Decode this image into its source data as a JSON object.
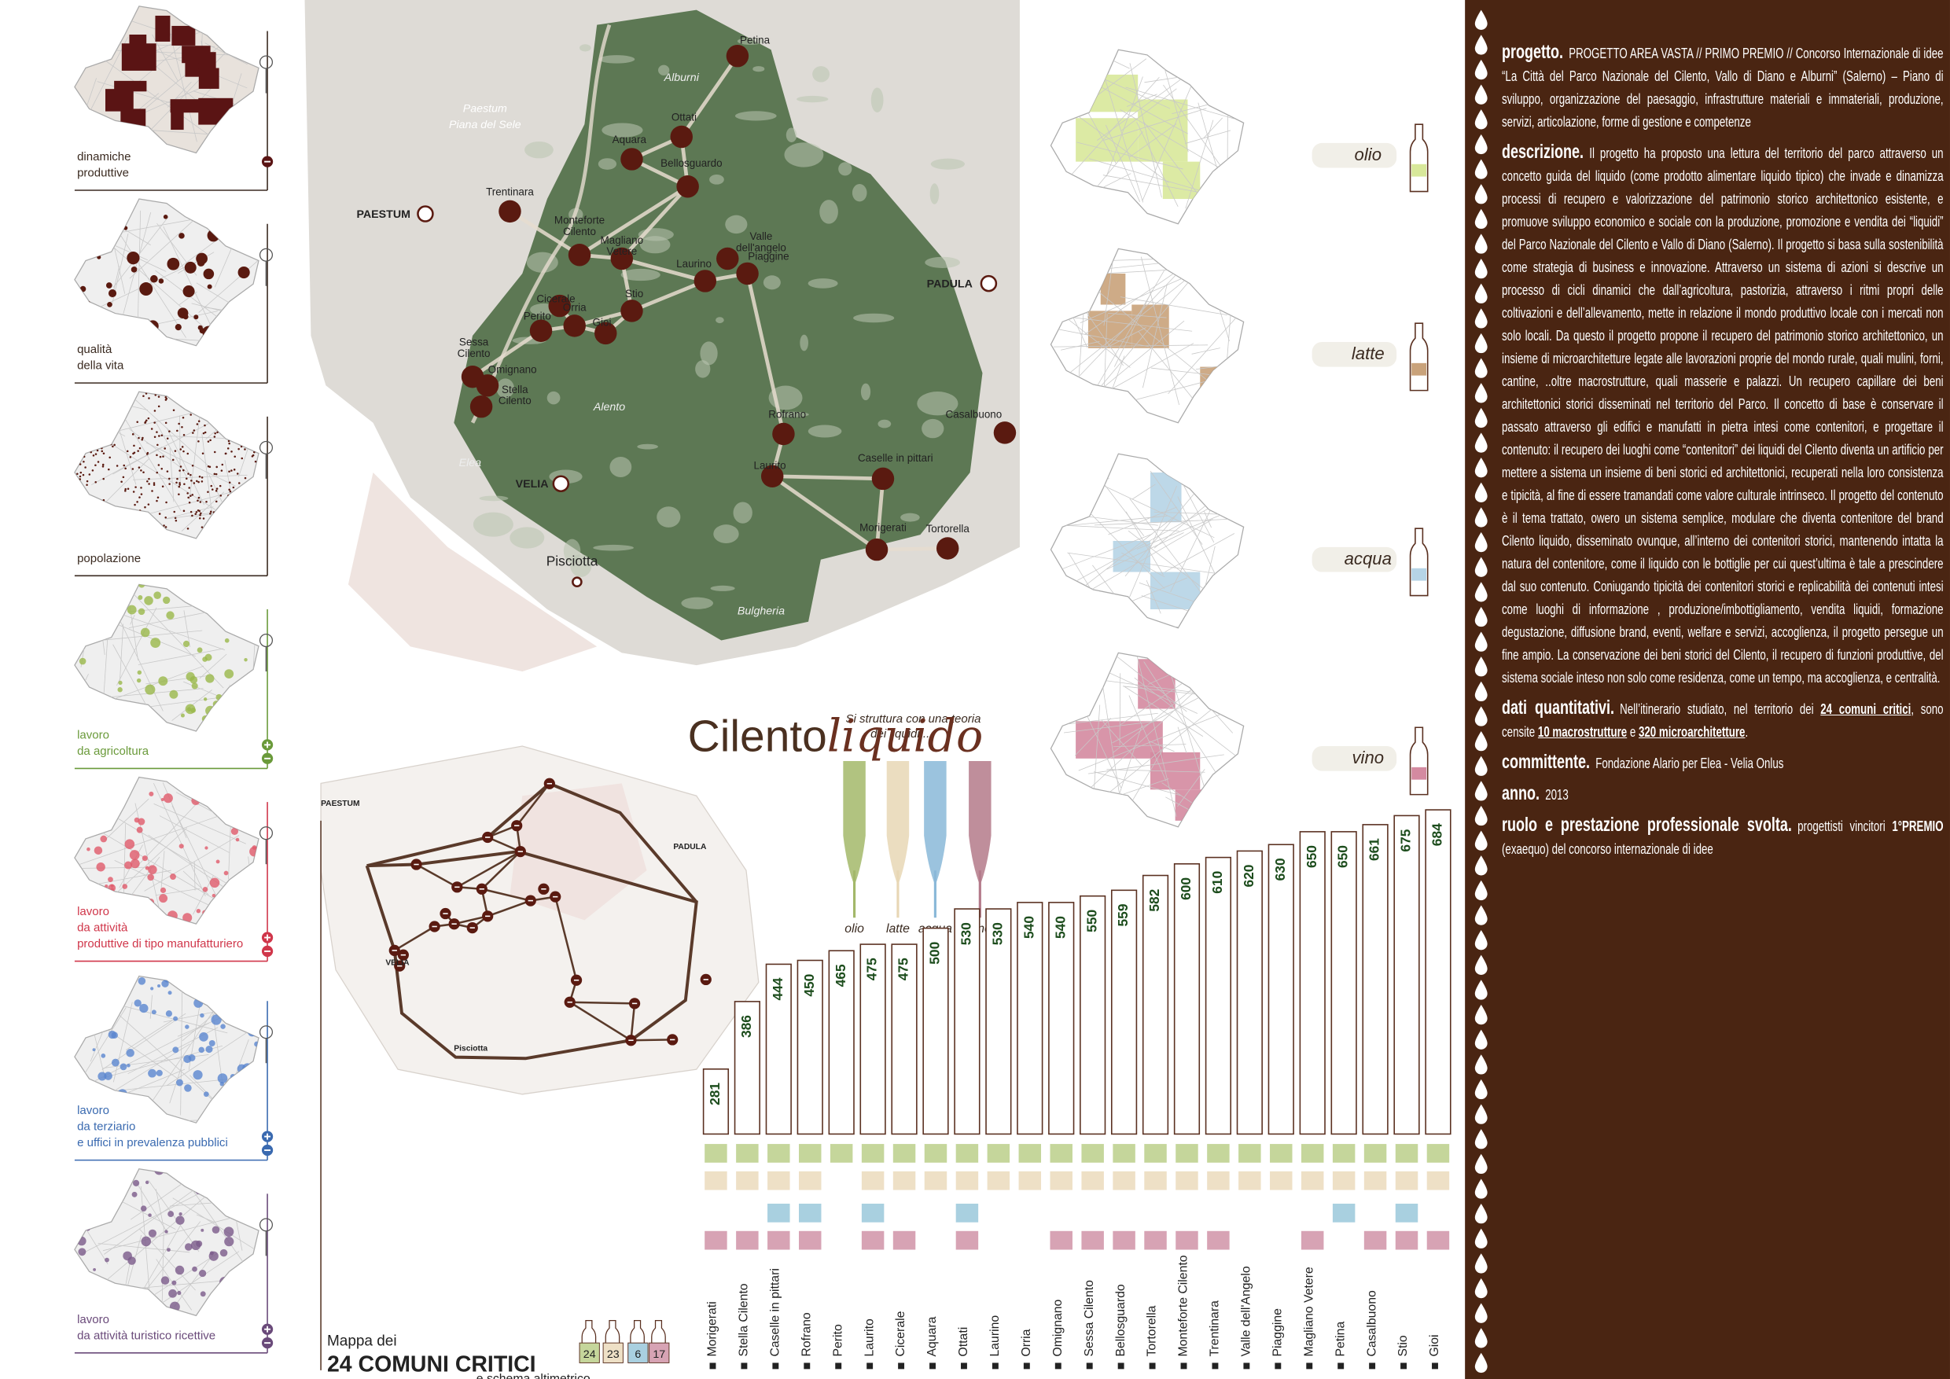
{
  "left_panels": [
    {
      "label": [
        "dinamiche",
        "produttive"
      ],
      "color": "#3a2a20"
    },
    {
      "label": [
        "qualità",
        "della vita"
      ],
      "color": "#3a2a20"
    },
    {
      "label": [
        "popolazione"
      ],
      "color": "#3a2a20"
    },
    {
      "label": [
        "lavoro",
        "da agricoltura"
      ],
      "color": "#6a9a3a"
    },
    {
      "label": [
        "lavoro",
        "da attività",
        "produttive di tipo manufatturiero"
      ],
      "color": "#d0364a"
    },
    {
      "label": [
        "lavoro",
        "da terziario",
        "e uffici in prevalenza pubblici"
      ],
      "color": "#3a6ab0"
    },
    {
      "label": [
        "lavoro",
        "da attività turistico ricettive"
      ],
      "color": "#6a4a7a"
    }
  ],
  "map": {
    "areas": [
      "Paestum",
      "Piana del Sele",
      "Alburni",
      "Alento",
      "Elea",
      "Bulgheria"
    ],
    "places": [
      "PAESTUM",
      "PADULA",
      "VELIA",
      "Pisciotta"
    ],
    "towns": [
      {
        "label": [
          "Petina"
        ]
      },
      {
        "label": [
          "Ottati"
        ]
      },
      {
        "label": [
          "Aquara"
        ]
      },
      {
        "label": [
          "Bellosguardo"
        ]
      },
      {
        "label": [
          "Trentinara"
        ]
      },
      {
        "label": [
          "Monteforte",
          "Cilento"
        ]
      },
      {
        "label": [
          "Magliano",
          "Vetere"
        ]
      },
      {
        "label": [
          "Valle",
          "dell'angelo"
        ]
      },
      {
        "label": [
          "Piaggine"
        ]
      },
      {
        "label": [
          "Laurino"
        ]
      },
      {
        "label": [
          "Cicerale"
        ]
      },
      {
        "label": [
          "Stio"
        ]
      },
      {
        "label": [
          "Orria"
        ]
      },
      {
        "label": [
          "Gioi"
        ]
      },
      {
        "label": [
          "Perito"
        ]
      },
      {
        "label": [
          "Sessa",
          "Cilento"
        ]
      },
      {
        "label": [
          "Omignano"
        ]
      },
      {
        "label": [
          "Stella",
          "Cilento"
        ]
      },
      {
        "label": [
          "Rofrano"
        ]
      },
      {
        "label": [
          "Casalbuono"
        ]
      },
      {
        "label": [
          "Laurito"
        ]
      },
      {
        "label": [
          "Caselle in pittari"
        ]
      },
      {
        "label": [
          "Morigerati"
        ]
      },
      {
        "label": [
          "Tortorella"
        ]
      }
    ]
  },
  "logo": {
    "prefix": "Cilento",
    "suffix": "liquido",
    "tagline": [
      "Si struttura con una teoria",
      "dei liquidi ..."
    ]
  },
  "bottles": [
    "olio",
    "latte",
    "acqua",
    "vino"
  ],
  "liquid_maps": [
    "olio",
    "latte",
    "acqua",
    "vino"
  ],
  "schema_map": {
    "places": [
      "PAESTUM",
      "PADULA",
      "VELIA",
      "Pisciotta"
    ],
    "title": [
      "Mappa dei",
      "24 COMUNI CRITICI",
      "e schema altimetrico"
    ]
  },
  "chart_data": {
    "type": "bar",
    "categories": [
      "Morigerati",
      "Stella Cilento",
      "Caselle in pittari",
      "Rofrano",
      "Perito",
      "Laurito",
      "Cicerale",
      "Aquara",
      "Ottati",
      "Laurino",
      "Orria",
      "Omignano",
      "Sessa Cilento",
      "Bellosguardo",
      "Tortorella",
      "Monteforte Cilento",
      "Trentinara",
      "Valle dell'Angelo",
      "Piaggine",
      "Magliano Vetere",
      "Petina",
      "Casalbuono",
      "Stio",
      "Gioi"
    ],
    "values": [
      281,
      386,
      444,
      450,
      465,
      475,
      475,
      500,
      530,
      530,
      540,
      540,
      550,
      559,
      582,
      600,
      610,
      620,
      630,
      650,
      650,
      661,
      675,
      684
    ],
    "ylim": [
      180,
      700
    ],
    "color": "#ffffff",
    "matrix": [
      {
        "color": "#c5d69b",
        "count": 24,
        "flags": [
          1,
          1,
          1,
          1,
          1,
          1,
          1,
          1,
          1,
          1,
          1,
          1,
          1,
          1,
          1,
          1,
          1,
          1,
          1,
          1,
          1,
          1,
          1,
          1
        ]
      },
      {
        "color": "#eee0c6",
        "count": 23,
        "flags": [
          1,
          1,
          1,
          1,
          0,
          1,
          1,
          1,
          1,
          1,
          1,
          1,
          1,
          1,
          1,
          1,
          1,
          1,
          1,
          1,
          1,
          1,
          1,
          1
        ]
      },
      {
        "color": "#a9d0e0",
        "count": 6,
        "flags": [
          0,
          0,
          1,
          1,
          0,
          1,
          0,
          0,
          1,
          0,
          0,
          0,
          0,
          0,
          0,
          0,
          0,
          0,
          0,
          0,
          1,
          0,
          1,
          0
        ]
      },
      {
        "color": "#d7a3b4",
        "count": 17,
        "flags": [
          1,
          1,
          1,
          1,
          0,
          1,
          1,
          0,
          1,
          0,
          0,
          1,
          1,
          1,
          1,
          1,
          1,
          0,
          0,
          1,
          0,
          1,
          1,
          1
        ]
      }
    ]
  },
  "text_panel": {
    "sections": [
      {
        "heading": "progetto.",
        "body": [
          "PROGETTO AREA VASTA // PRIMO PREMIO // Concorso Internazionale di idee “La Città del Parco Nazionale del Cilento, Vallo di Diano e Alburni” (Salerno) – Piano di sviluppo, organizzazione del paesaggio, infrastrutture materiali e immateriali, produzione, servizi, articolazione, forme di gestione e competenze"
        ]
      },
      {
        "heading": "descrizione.",
        "body": [
          "Il progetto ha proposto una lettura del territorio del parco attraverso un concetto guida del liquido (come prodotto alimentare liquido tipico) che invade e dinamizza processi di recupero e valorizzazione del patrimonio storico architettonico esistente, e promuove sviluppo economico e sociale con la produzione, promozione e vendita dei “liquidi” del Parco Nazionale del Cilento e Vallo di Diano (Salerno). Il progetto si basa sulla sostenibilità come strategia di business e innovazione. Attraverso un sistema di azioni si descrive un processo di cicli dinamici che dall’agricoltura, pastorizia, attraverso i ritmi propri delle coltivazioni e dell’allevamento, mette in relazione il mondo produttivo locale con i mercati non solo locali. Da questo il progetto propone il recupero del patrimonio storico architettonico, un insieme di microarchitetture legate alle lavorazioni proprie del mondo rurale, quali mulini, forni, cantine, ..oltre macrostrutture, quali masserie e palazzi. Un recupero capillare dei beni architettonici storici disseminati nel territorio del Parco. Il concetto di base è conservare il passato attraverso gli edifici e manufatti in pietra intesi come contenitori, e progettare il contenuto: il recupero dei luoghi come “contenitori” dei liquidi del Cilento diventa un artificio per mettere a sistema un insieme di beni storici ed architettonici, recuperati nella loro consistenza e tipicità, al fine di essere tramandati come valore culturale intrinseco. Il progetto del contenuto è il tema trattato, owero un sistema semplice, modulare che diventa contenitore del brand Cilento liquido, disseminato ovunque, all’interno dei contenitori storici, mantenendo intatta la natura del contenitore, come il liquido con le bottiglie per cui quest’ultima è tale a prescindere dal suo contenuto. Coniugando tipicità dei contenitori storici e replicabilità dei contenuti intesi come luoghi di informazione , produzione/imbottigliamento, vendita liquidi, formazione degustazione, diffusione brand, eventi, welfare e servizi, accoglienza, il progetto persegue un fine ampio. La conservazione dei beni storici del Cilento, il recupero di funzioni produttive, del sistema sociale inteso non solo come residenza, come un tempo, ma accoglienza, e centralità."
        ]
      },
      {
        "heading": "dati quantitativi.",
        "body": [
          "Nell’itinerario studiato, nel territorio dei ",
          "24 comuni critici",
          ", sono censite ",
          "10 macrostrutture",
          " e ",
          "320 microarchitetture",
          "."
        ]
      },
      {
        "heading": "committente.",
        "body": [
          "Fondazione Alario per Elea - Velia Onlus"
        ]
      },
      {
        "heading": "anno.",
        "body": [
          "2013"
        ]
      },
      {
        "heading": "ruolo e prestazione professionale svolta.",
        "body": [
          "progettisti vincitori ",
          "1°PREMIO",
          " (exaequo) del concorso internazionale di idee"
        ]
      }
    ]
  }
}
